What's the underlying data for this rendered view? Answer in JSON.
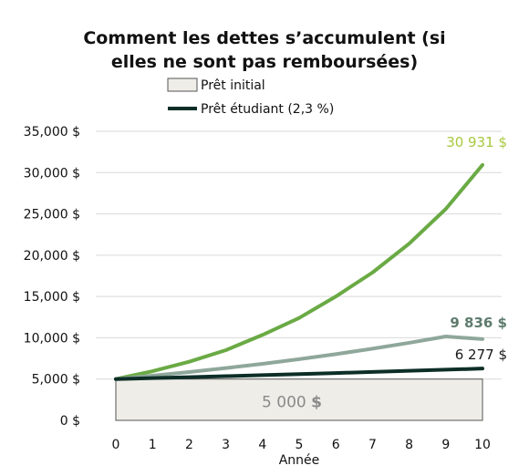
{
  "chart_data": {
    "type": "line",
    "title_lines": [
      "Comment les dettes s’accumulent (si",
      "elles ne sont pas remboursées)"
    ],
    "xlabel": "Année",
    "ylabel": "",
    "x": [
      0,
      1,
      2,
      3,
      4,
      5,
      6,
      7,
      8,
      9,
      10
    ],
    "xlim": [
      0,
      10
    ],
    "ylim": [
      0,
      35000
    ],
    "yticks": [
      0,
      5000,
      10000,
      15000,
      20000,
      25000,
      30000,
      35000
    ],
    "ytick_labels": [
      "0 $",
      "5,000 $",
      "10,000 $",
      "15,000 $",
      "20,000 $",
      "25,000 $",
      "30,000 $",
      "35,000 $"
    ],
    "grid": true,
    "legend_position": "top",
    "base": {
      "name": "Prêt initial",
      "value": 5000,
      "label": "5 000",
      "label_unit": "$",
      "color": "#efede8",
      "edge": "#555555",
      "label_color": "#8a8a8a"
    },
    "series": [
      {
        "name": "Prêt étudiant (2,3 %)",
        "legend": true,
        "values": [
          5000,
          5115,
          5233,
          5353,
          5476,
          5602,
          5731,
          5863,
          5998,
          6136,
          6277
        ],
        "color": "#0d2e27",
        "width": 4,
        "end_label": "6 277 $",
        "end_label_color": "#1a1a1a",
        "end_label_bold": false
      },
      {
        "values": [
          5000,
          5410,
          5850,
          6330,
          6850,
          7410,
          8020,
          8680,
          9390,
          10160,
          9836
        ],
        "color": "#8fa79b",
        "width": 4,
        "end_label": "9 836 $",
        "end_label_color": "#5d7b6d",
        "end_label_bold": true
      },
      {
        "values": [
          5000,
          5950,
          7100,
          8500,
          10350,
          12400,
          15000,
          17900,
          21400,
          25600,
          30931
        ],
        "color": "#6aaa45",
        "width": 4,
        "end_label": "30 931 $",
        "end_label_color": "#a8c93e",
        "end_label_bold": false
      }
    ]
  }
}
